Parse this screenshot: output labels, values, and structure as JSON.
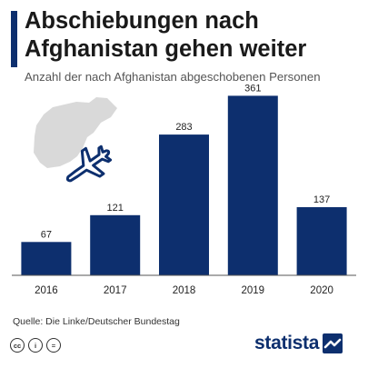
{
  "header": {
    "title_line1": "Abschiebungen nach",
    "title_line2": "Afghanistan gehen weiter",
    "subtitle": "Anzahl der nach Afghanistan abgeschobenen Personen"
  },
  "chart_data": {
    "type": "bar",
    "categories": [
      "2016",
      "2017",
      "2018",
      "2019",
      "2020"
    ],
    "values": [
      67,
      121,
      283,
      361,
      137
    ],
    "title": "Abschiebungen nach Afghanistan gehen weiter",
    "subtitle": "Anzahl der nach Afghanistan abgeschobenen Personen",
    "xlabel": "",
    "ylabel": "",
    "ylim": [
      0,
      380
    ],
    "grid": false,
    "bar_color": "#0d2f6e",
    "baseline_color": "#555555"
  },
  "decoration": {
    "map_icon": "afghanistan-map-silhouette",
    "plane_icon": "airplane-icon",
    "map_color": "#d9d9d9",
    "plane_color": "#0d2f6e"
  },
  "footer": {
    "source": "Quelle: Die Linke/Deutscher Bundestag",
    "license_icons": [
      "cc",
      "i",
      "="
    ],
    "brand": "statista"
  }
}
